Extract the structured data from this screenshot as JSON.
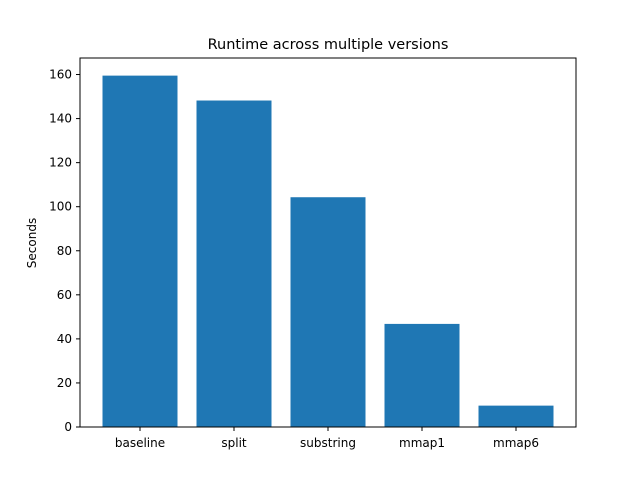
{
  "chart_data": {
    "type": "bar",
    "title": "Runtime across multiple versions",
    "xlabel": "",
    "ylabel": "Seconds",
    "categories": [
      "baseline",
      "split",
      "substring",
      "mmap1",
      "mmap6"
    ],
    "values": [
      159.5,
      148.2,
      104.3,
      46.8,
      9.7
    ],
    "ylim": [
      0,
      167.5
    ],
    "yticks": [
      0,
      20,
      40,
      60,
      80,
      100,
      120,
      140,
      160
    ],
    "bar_color": "#1f77b4",
    "grid": false,
    "legend": "none"
  }
}
